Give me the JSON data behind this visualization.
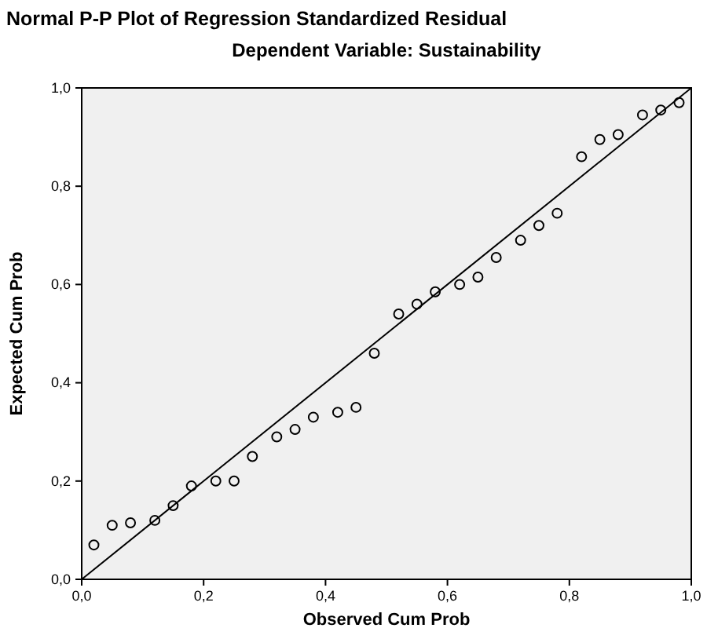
{
  "chart_data": {
    "type": "scatter",
    "title": "Normal P-P Plot of Regression Standardized Residual",
    "subtitle": "Dependent Variable: Sustainability",
    "xlabel": "Observed Cum Prob",
    "ylabel": "Expected Cum Prob",
    "xlim": [
      0,
      1
    ],
    "ylim": [
      0,
      1
    ],
    "xticks": [
      {
        "value": 0,
        "label": "0,0"
      },
      {
        "value": 0.2,
        "label": "0,2"
      },
      {
        "value": 0.4,
        "label": "0,4"
      },
      {
        "value": 0.6,
        "label": "0,6"
      },
      {
        "value": 0.8,
        "label": "0,8"
      },
      {
        "value": 1,
        "label": "1,0"
      }
    ],
    "yticks": [
      {
        "value": 0,
        "label": "0,0"
      },
      {
        "value": 0.2,
        "label": "0,2"
      },
      {
        "value": 0.4,
        "label": "0,4"
      },
      {
        "value": 0.6,
        "label": "0,6"
      },
      {
        "value": 0.8,
        "label": "0,8"
      },
      {
        "value": 1,
        "label": "1,0"
      }
    ],
    "marker": "circle",
    "grid": false,
    "series": [
      {
        "color": "#000000",
        "x": [
          0.02,
          0.05,
          0.08,
          0.12,
          0.15,
          0.18,
          0.22,
          0.25,
          0.28,
          0.32,
          0.35,
          0.38,
          0.42,
          0.45,
          0.48,
          0.52,
          0.55,
          0.58,
          0.62,
          0.65,
          0.68,
          0.72,
          0.75,
          0.78,
          0.82,
          0.85,
          0.88,
          0.92,
          0.95,
          0.98
        ],
        "values": [
          0.07,
          0.11,
          0.115,
          0.12,
          0.15,
          0.19,
          0.2,
          0.2,
          0.25,
          0.29,
          0.305,
          0.33,
          0.34,
          0.35,
          0.46,
          0.54,
          0.56,
          0.585,
          0.6,
          0.615,
          0.655,
          0.69,
          0.72,
          0.745,
          0.86,
          0.895,
          0.905,
          0.945,
          0.955,
          0.97
        ]
      },
      {
        "type": "line",
        "marker": "none",
        "color": "#000000",
        "x": [
          0,
          1
        ],
        "values": [
          0,
          1
        ]
      }
    ]
  }
}
